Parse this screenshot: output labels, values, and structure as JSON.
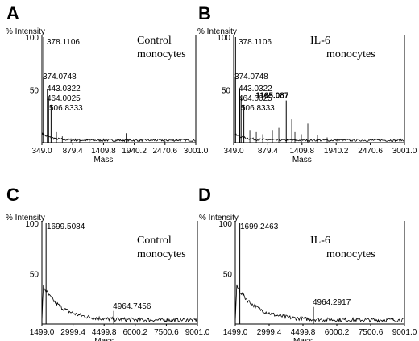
{
  "chart_data": [
    {
      "panel": "A",
      "type": "line",
      "ylabel": "% Intensity",
      "xlabel": "Mass",
      "xlim": [
        349.0,
        3001.0
      ],
      "ylim": [
        0,
        100
      ],
      "xticks": [
        "349.0",
        "879.4",
        "1409.8",
        "1940.2",
        "2470.6",
        "3001.0"
      ],
      "yticks": [
        "100",
        "50"
      ],
      "annotation": [
        "Control",
        "monocytes"
      ],
      "peaks": [
        {
          "mass": 378.1106,
          "intensity": 100,
          "label": "378.1106",
          "bold": false
        },
        {
          "mass": 374.0748,
          "intensity": 62,
          "label": "374.0748",
          "bold": false
        },
        {
          "mass": 443.0322,
          "intensity": 50,
          "label": "443.0322",
          "bold": false
        },
        {
          "mass": 464.0025,
          "intensity": 43,
          "label": "464.0025",
          "bold": false
        },
        {
          "mass": 506.8333,
          "intensity": 36,
          "label": "506.8333",
          "bold": false
        }
      ],
      "minor_peaks": [
        {
          "mass": 600,
          "intensity": 10
        },
        {
          "mass": 700,
          "intensity": 6
        },
        {
          "mass": 850,
          "intensity": 4
        },
        {
          "mass": 1000,
          "intensity": 3
        },
        {
          "mass": 1165,
          "intensity": 3
        },
        {
          "mass": 1800,
          "intensity": 9
        },
        {
          "mass": 2470,
          "intensity": 2
        }
      ]
    },
    {
      "panel": "B",
      "type": "line",
      "ylabel": "% Intensity",
      "xlabel": "Mass",
      "xlim": [
        349.0,
        3001.0
      ],
      "ylim": [
        0,
        100
      ],
      "xticks": [
        "349.0",
        "879.4",
        "1409.8",
        "1940.2",
        "2470.6",
        "3001.0"
      ],
      "yticks": [
        "100",
        "50"
      ],
      "annotation": [
        "IL-6",
        "monocytes"
      ],
      "peaks": [
        {
          "mass": 378.1106,
          "intensity": 100,
          "label": "378.1106",
          "bold": false
        },
        {
          "mass": 374.0748,
          "intensity": 62,
          "label": "374.0748",
          "bold": false
        },
        {
          "mass": 443.0322,
          "intensity": 50,
          "label": "443.0322",
          "bold": false
        },
        {
          "mass": 464.0025,
          "intensity": 43,
          "label": "464.0025",
          "bold": false
        },
        {
          "mass": 506.8333,
          "intensity": 36,
          "label": "506.8333",
          "bold": false
        },
        {
          "mass": 1165.087,
          "intensity": 40,
          "label": "1165.087",
          "bold": true
        }
      ],
      "minor_peaks": [
        {
          "mass": 600,
          "intensity": 12
        },
        {
          "mass": 700,
          "intensity": 10
        },
        {
          "mass": 800,
          "intensity": 8
        },
        {
          "mass": 950,
          "intensity": 12
        },
        {
          "mass": 1050,
          "intensity": 14
        },
        {
          "mass": 1250,
          "intensity": 22
        },
        {
          "mass": 1300,
          "intensity": 10
        },
        {
          "mass": 1400,
          "intensity": 8
        },
        {
          "mass": 1500,
          "intensity": 18
        },
        {
          "mass": 1650,
          "intensity": 7
        },
        {
          "mass": 1800,
          "intensity": 5
        }
      ]
    },
    {
      "panel": "C",
      "type": "line",
      "ylabel": "% Intensity",
      "xlabel": "Mass",
      "xlim": [
        1499.0,
        9001.0
      ],
      "ylim": [
        0,
        100
      ],
      "xticks": [
        "1499.0",
        "2999.4",
        "4499.8",
        "6000.2",
        "7500.6",
        "9001.0"
      ],
      "yticks": [
        "100",
        "50"
      ],
      "annotation": [
        "Control",
        "monocytes"
      ],
      "peaks": [
        {
          "mass": 1699.5084,
          "intensity": 100,
          "label": "1699.5084",
          "bold": false
        },
        {
          "mass": 4964.7456,
          "intensity": 13,
          "label": "4964.7456",
          "bold": false
        }
      ],
      "minor_peaks": []
    },
    {
      "panel": "D",
      "type": "line",
      "ylabel": "% Intensity",
      "xlabel": "Mass",
      "xlim": [
        1499.0,
        9001.0
      ],
      "ylim": [
        0,
        100
      ],
      "xticks": [
        "1499.0",
        "2999.4",
        "4499.8",
        "6000.2",
        "7500.6",
        "9001.0"
      ],
      "yticks": [
        "100",
        "50"
      ],
      "annotation": [
        "IL-6",
        "monocytes"
      ],
      "peaks": [
        {
          "mass": 1699.2463,
          "intensity": 100,
          "label": "1699.2463",
          "bold": false
        },
        {
          "mass": 4964.2917,
          "intensity": 17,
          "label": "4964.2917",
          "bold": false
        }
      ],
      "minor_peaks": []
    }
  ]
}
